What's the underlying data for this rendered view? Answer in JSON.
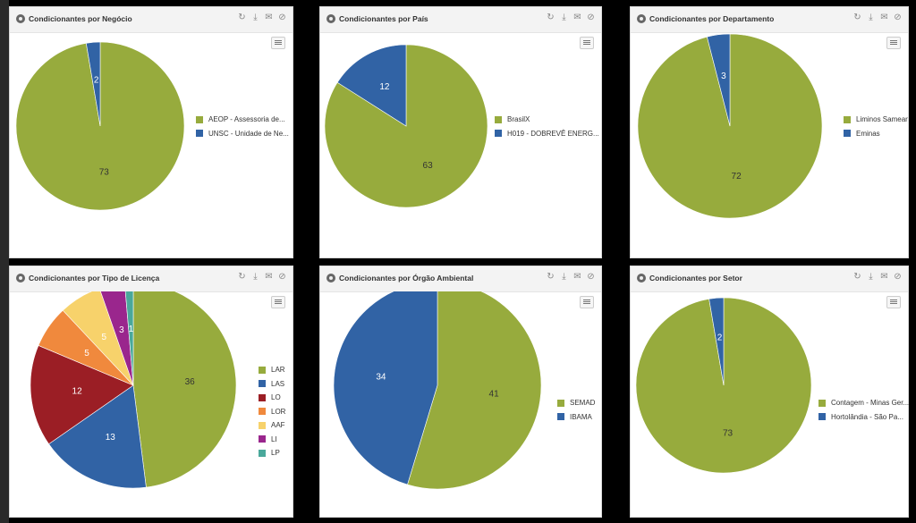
{
  "icons": {
    "refresh": "refresh-icon",
    "download": "download-icon",
    "email": "email-icon",
    "close": "close-icon",
    "menu": "menu-icon"
  },
  "colors": {
    "green": "#97ab3d",
    "blue": "#3163a5",
    "darkred": "#9b1e25",
    "orange": "#f0893d",
    "yellow": "#f7d26b",
    "purple": "#9a268d",
    "teal": "#4aa89b"
  },
  "panels": [
    {
      "title": "Condicionantes por Negócio",
      "chart_data": {
        "type": "pie",
        "categories": [
          "AEOP - Assessoria de...",
          "UNSC - Unidade de Ne..."
        ],
        "values": [
          73,
          2
        ],
        "colors": [
          "#97ab3d",
          "#3163a5"
        ]
      }
    },
    {
      "title": "Condicionantes por País",
      "chart_data": {
        "type": "pie",
        "categories": [
          "BrasilX",
          "H019 - DOBREVÊ ENERG..."
        ],
        "values": [
          63,
          12
        ],
        "colors": [
          "#97ab3d",
          "#3163a5"
        ]
      }
    },
    {
      "title": "Condicionantes por Departamento",
      "chart_data": {
        "type": "pie",
        "categories": [
          "Liminos Samear",
          "Eminas"
        ],
        "values": [
          72,
          3
        ],
        "colors": [
          "#97ab3d",
          "#3163a5"
        ]
      }
    },
    {
      "title": "Condicionantes por Tipo de Licença",
      "chart_data": {
        "type": "pie",
        "categories": [
          "LAR",
          "LAS",
          "LO",
          "LOR",
          "AAF",
          "LI",
          "LP"
        ],
        "values": [
          36,
          13,
          12,
          5,
          5,
          3,
          1
        ],
        "colors": [
          "#97ab3d",
          "#3163a5",
          "#9b1e25",
          "#f0893d",
          "#f7d26b",
          "#9a268d",
          "#4aa89b"
        ]
      }
    },
    {
      "title": "Condicionantes por Órgão Ambiental",
      "chart_data": {
        "type": "pie",
        "categories": [
          "SEMAD",
          "IBAMA"
        ],
        "values": [
          41,
          34
        ],
        "colors": [
          "#97ab3d",
          "#3163a5"
        ]
      }
    },
    {
      "title": "Condicionantes por Setor",
      "chart_data": {
        "type": "pie",
        "categories": [
          "Contagem - Minas Ger...",
          "Hortolândia - São Pa..."
        ],
        "values": [
          73,
          2
        ],
        "colors": [
          "#97ab3d",
          "#3163a5"
        ]
      }
    }
  ]
}
